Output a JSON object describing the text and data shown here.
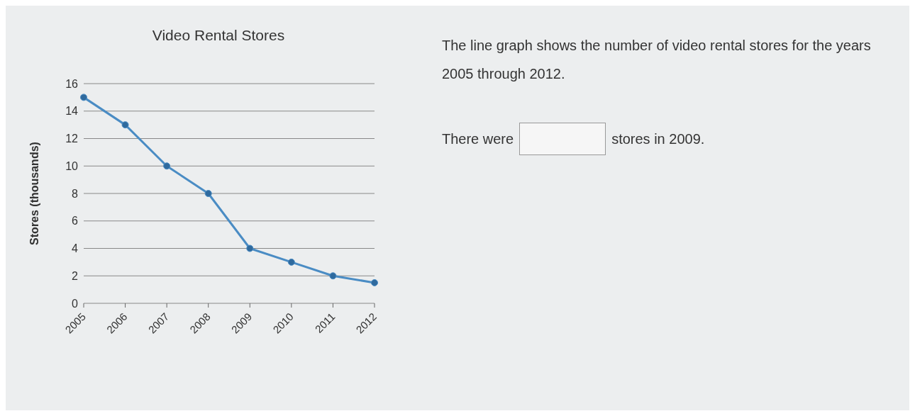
{
  "chart_data": {
    "type": "line",
    "title": "Video Rental Stores",
    "ylabel": "Stores (thousands)",
    "categories": [
      "2005",
      "2006",
      "2007",
      "2008",
      "2009",
      "2010",
      "2011",
      "2012"
    ],
    "series": [
      {
        "color": "#4a8cc4",
        "values": [
          15,
          13,
          10,
          8,
          4,
          3,
          2,
          1.5
        ]
      }
    ],
    "ylim": [
      0,
      16
    ],
    "yticks": [
      0,
      2,
      4,
      6,
      8,
      10,
      12,
      14,
      16
    ],
    "grid": "y",
    "marker": "circle",
    "line_style": "solid",
    "annotations": [
      "The line graph shows the number of video rental stores for the years 2005 through 2012.",
      "There were",
      "stores in 2009."
    ]
  }
}
